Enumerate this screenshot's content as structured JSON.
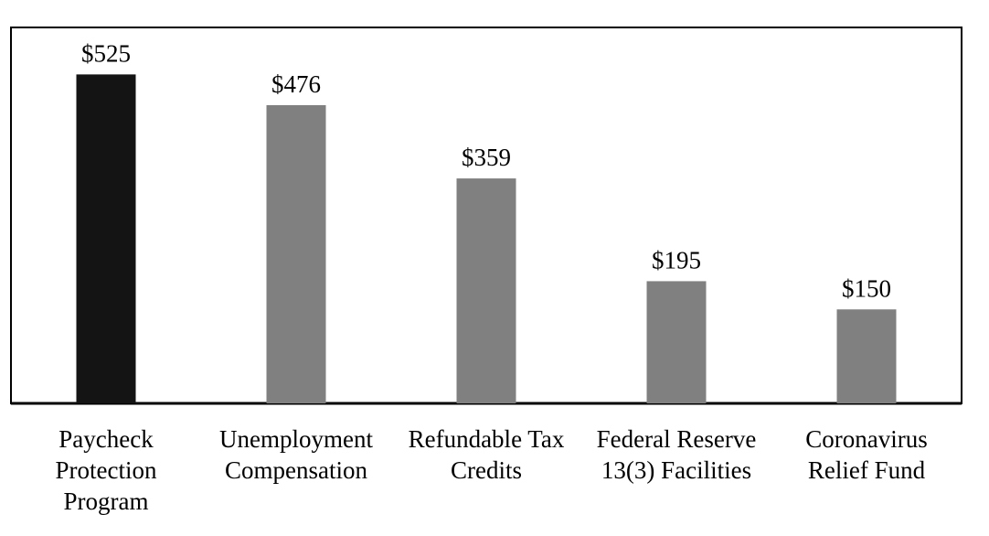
{
  "chart_data": {
    "type": "bar",
    "categories": [
      "Paycheck Protection Program",
      "Unemployment Compensation",
      "Refundable Tax Credits",
      "Federal Reserve 13(3) Facilities",
      "Coronavirus Relief Fund"
    ],
    "values": [
      525,
      476,
      359,
      195,
      150
    ],
    "value_labels": [
      "$525",
      "$476",
      "$359",
      "$195",
      "$150"
    ],
    "colors": [
      "#141414",
      "#808080",
      "#808080",
      "#808080",
      "#808080"
    ],
    "ylim": [
      0,
      600
    ]
  }
}
